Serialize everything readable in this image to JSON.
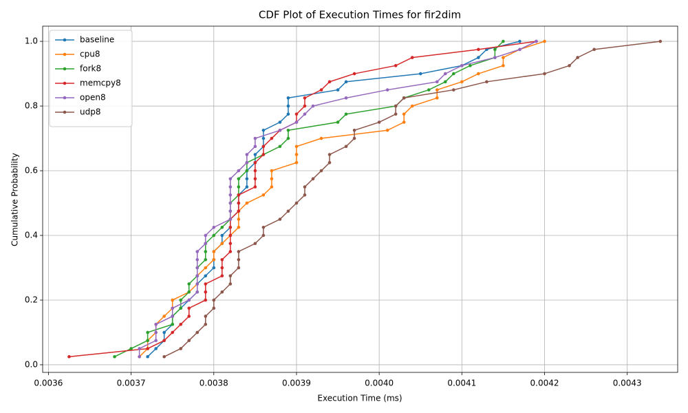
{
  "chart_data": {
    "type": "line",
    "title": "CDF Plot of Execution Times for fir2dim",
    "x_label": "Execution Time (ms)",
    "y_label": "Cumulative Probability",
    "xlim": [
      0.003593,
      0.004361
    ],
    "ylim": [
      -0.0235,
      1.047
    ],
    "xticks": [
      0.0036,
      0.0037,
      0.0038,
      0.0039,
      {
        "value": 0.004,
        "label": "0.0040"
      },
      0.0041,
      0.0042,
      0.0043
    ],
    "yticks": [
      {
        "value": 0,
        "label": "0.0"
      },
      {
        "value": 0.2,
        "label": "0.2"
      },
      {
        "value": 0.4,
        "label": "0.4"
      },
      {
        "value": 0.6,
        "label": "0.6"
      },
      {
        "value": 0.8,
        "label": "0.8"
      },
      {
        "value": 1,
        "label": "1.0"
      }
    ],
    "grid": true,
    "legend": "upper left",
    "series": [
      {
        "name": "baseline",
        "color": "#1f77b4",
        "x": [
          0.00372,
          0.00373,
          0.00374,
          0.00374,
          0.00375,
          0.00375,
          0.00376,
          0.00377,
          0.00378,
          0.00378,
          0.00379,
          0.0038,
          0.0038,
          0.0038,
          0.00381,
          0.00381,
          0.00382,
          0.00382,
          0.00383,
          0.00383,
          0.00383,
          0.00384,
          0.00384,
          0.00384,
          0.00385,
          0.00385,
          0.00386,
          0.00386,
          0.00386,
          0.00388,
          0.00389,
          0.00389,
          0.00389,
          0.00395,
          0.00396,
          0.00405,
          0.0041,
          0.00412,
          0.00413,
          0.00417
        ],
        "values": [
          0.025,
          0.05,
          0.075,
          0.1,
          0.125,
          0.15,
          0.175,
          0.2,
          0.225,
          0.25,
          0.275,
          0.3,
          0.325,
          0.35,
          0.375,
          0.4,
          0.425,
          0.45,
          0.475,
          0.5,
          0.525,
          0.55,
          0.575,
          0.6,
          0.625,
          0.65,
          0.675,
          0.7,
          0.725,
          0.75,
          0.775,
          0.8,
          0.825,
          0.85,
          0.875,
          0.9,
          0.925,
          0.95,
          0.975,
          1.0
        ]
      },
      {
        "name": "cpu8",
        "color": "#ff7f0e",
        "x": [
          0.00371,
          0.00372,
          0.00372,
          0.00373,
          0.00373,
          0.00374,
          0.00375,
          0.00375,
          0.00377,
          0.00378,
          0.00378,
          0.00379,
          0.0038,
          0.0038,
          0.00381,
          0.00382,
          0.00383,
          0.00383,
          0.00383,
          0.00384,
          0.00386,
          0.00387,
          0.00387,
          0.00387,
          0.0039,
          0.0039,
          0.0039,
          0.00393,
          0.00401,
          0.00403,
          0.00403,
          0.00404,
          0.00407,
          0.00407,
          0.0041,
          0.00412,
          0.00415,
          0.00415,
          0.00417,
          0.0042
        ],
        "values": [
          0.025,
          0.05,
          0.075,
          0.1,
          0.125,
          0.15,
          0.175,
          0.2,
          0.225,
          0.25,
          0.275,
          0.3,
          0.325,
          0.35,
          0.375,
          0.4,
          0.425,
          0.45,
          0.475,
          0.5,
          0.525,
          0.55,
          0.575,
          0.6,
          0.625,
          0.65,
          0.675,
          0.7,
          0.725,
          0.75,
          0.775,
          0.8,
          0.825,
          0.85,
          0.875,
          0.9,
          0.925,
          0.95,
          0.975,
          1.0
        ]
      },
      {
        "name": "fork8",
        "color": "#2ca02c",
        "x": [
          0.00368,
          0.0037,
          0.00372,
          0.00372,
          0.00375,
          0.00375,
          0.00376,
          0.00376,
          0.00377,
          0.00377,
          0.00378,
          0.00378,
          0.00379,
          0.00379,
          0.00379,
          0.0038,
          0.00381,
          0.00382,
          0.00382,
          0.00382,
          0.00383,
          0.00383,
          0.00383,
          0.00384,
          0.00384,
          0.00386,
          0.00388,
          0.00389,
          0.00389,
          0.00395,
          0.00396,
          0.00402,
          0.00403,
          0.00406,
          0.00408,
          0.00409,
          0.00411,
          0.00414,
          0.00414,
          0.00415
        ],
        "values": [
          0.025,
          0.05,
          0.075,
          0.1,
          0.125,
          0.15,
          0.175,
          0.2,
          0.225,
          0.25,
          0.275,
          0.3,
          0.325,
          0.35,
          0.375,
          0.4,
          0.425,
          0.45,
          0.475,
          0.5,
          0.525,
          0.55,
          0.575,
          0.6,
          0.625,
          0.65,
          0.675,
          0.7,
          0.725,
          0.75,
          0.775,
          0.8,
          0.825,
          0.85,
          0.875,
          0.9,
          0.925,
          0.95,
          0.975,
          1.0
        ]
      },
      {
        "name": "memcpy8",
        "color": "#d62728",
        "x": [
          0.003625,
          0.00372,
          0.00374,
          0.00375,
          0.00376,
          0.00377,
          0.00377,
          0.00379,
          0.00379,
          0.00379,
          0.00381,
          0.00381,
          0.00381,
          0.00382,
          0.00382,
          0.00382,
          0.00382,
          0.00382,
          0.00383,
          0.00383,
          0.00383,
          0.00385,
          0.00385,
          0.00385,
          0.00385,
          0.00386,
          0.00386,
          0.00387,
          0.00388,
          0.0039,
          0.0039,
          0.00391,
          0.00391,
          0.00393,
          0.00394,
          0.00397,
          0.00402,
          0.00404,
          0.00412,
          0.00419
        ],
        "values": [
          0.025,
          0.05,
          0.075,
          0.1,
          0.125,
          0.15,
          0.175,
          0.2,
          0.225,
          0.25,
          0.275,
          0.3,
          0.325,
          0.35,
          0.375,
          0.4,
          0.425,
          0.45,
          0.475,
          0.5,
          0.525,
          0.55,
          0.575,
          0.6,
          0.625,
          0.65,
          0.675,
          0.7,
          0.725,
          0.75,
          0.775,
          0.8,
          0.825,
          0.85,
          0.875,
          0.9,
          0.925,
          0.95,
          0.975,
          1.0
        ]
      },
      {
        "name": "open8",
        "color": "#9467bd",
        "x": [
          0.00371,
          0.00371,
          0.00373,
          0.00373,
          0.00373,
          0.00375,
          0.00375,
          0.00377,
          0.00378,
          0.00378,
          0.00378,
          0.00378,
          0.00378,
          0.00378,
          0.00379,
          0.00379,
          0.0038,
          0.00382,
          0.00382,
          0.00382,
          0.00382,
          0.00382,
          0.00382,
          0.00383,
          0.00384,
          0.00384,
          0.00385,
          0.00385,
          0.00388,
          0.0039,
          0.00391,
          0.00392,
          0.00396,
          0.00401,
          0.00407,
          0.00408,
          0.0041,
          0.00414,
          0.00417,
          0.00419
        ],
        "values": [
          0.025,
          0.05,
          0.075,
          0.1,
          0.125,
          0.15,
          0.175,
          0.2,
          0.225,
          0.25,
          0.275,
          0.3,
          0.325,
          0.35,
          0.375,
          0.4,
          0.425,
          0.45,
          0.475,
          0.5,
          0.525,
          0.55,
          0.575,
          0.6,
          0.625,
          0.65,
          0.675,
          0.7,
          0.725,
          0.75,
          0.775,
          0.8,
          0.825,
          0.85,
          0.875,
          0.9,
          0.925,
          0.95,
          0.975,
          1.0
        ]
      },
      {
        "name": "udp8",
        "color": "#8c564b",
        "x": [
          0.00374,
          0.00376,
          0.00377,
          0.00378,
          0.00379,
          0.00379,
          0.0038,
          0.0038,
          0.00381,
          0.00382,
          0.00382,
          0.00383,
          0.00383,
          0.00383,
          0.00385,
          0.00386,
          0.00386,
          0.00388,
          0.00389,
          0.0039,
          0.00391,
          0.00391,
          0.00392,
          0.00393,
          0.00394,
          0.00394,
          0.00396,
          0.00397,
          0.00397,
          0.004,
          0.00402,
          0.00402,
          0.00403,
          0.00409,
          0.00413,
          0.0042,
          0.00423,
          0.00424,
          0.00426,
          0.00434
        ],
        "values": [
          0.025,
          0.05,
          0.075,
          0.1,
          0.125,
          0.15,
          0.175,
          0.2,
          0.225,
          0.25,
          0.275,
          0.3,
          0.325,
          0.35,
          0.375,
          0.4,
          0.425,
          0.45,
          0.475,
          0.5,
          0.525,
          0.55,
          0.575,
          0.6,
          0.625,
          0.65,
          0.675,
          0.7,
          0.725,
          0.75,
          0.775,
          0.8,
          0.825,
          0.85,
          0.875,
          0.9,
          0.925,
          0.95,
          0.975,
          1.0
        ]
      }
    ]
  }
}
